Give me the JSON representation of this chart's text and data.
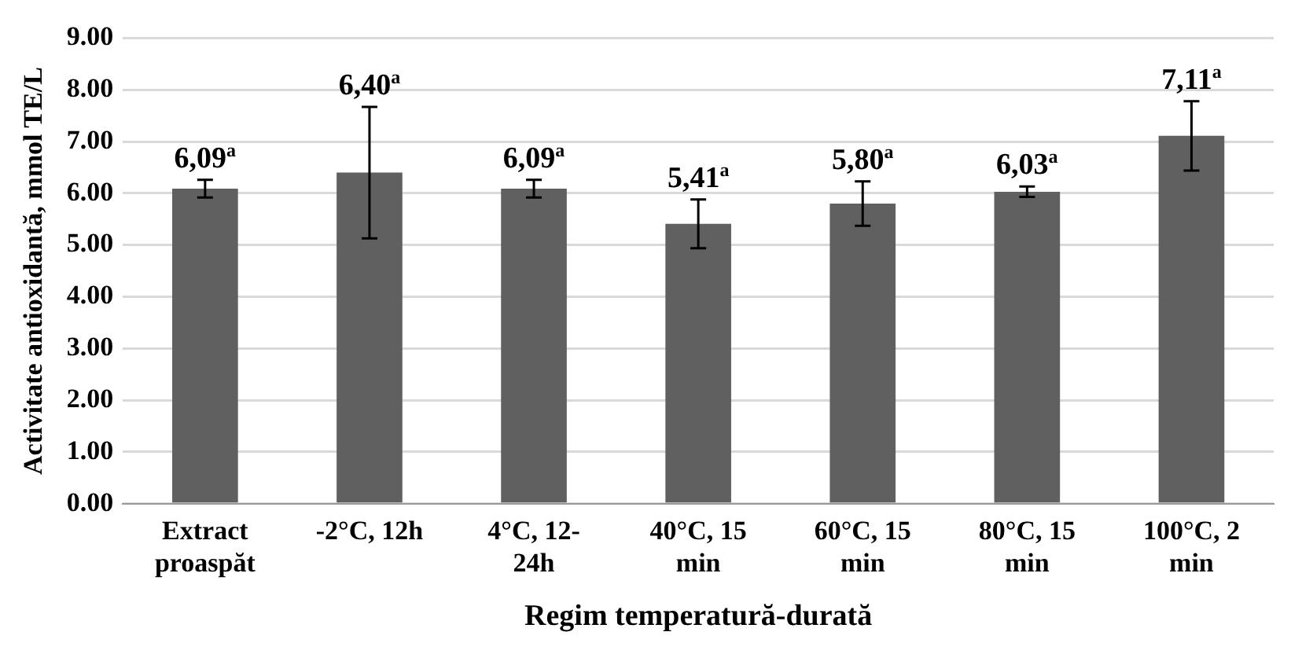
{
  "chart_data": {
    "type": "bar",
    "xlabel": "Regim temperatură-durată",
    "ylabel": "Activitate antioxidantă, mmol TE/L",
    "categories": [
      "Extract proaspăt",
      "-2°C, 12h",
      "4°C, 12-24h",
      "40°C, 15 min",
      "60°C, 15 min",
      "80°C, 15 min",
      "100°C, 2 min"
    ],
    "values": [
      6.09,
      6.4,
      6.09,
      5.41,
      5.8,
      6.03,
      7.11
    ],
    "errors": [
      0.17,
      1.27,
      0.17,
      0.47,
      0.43,
      0.1,
      0.67
    ],
    "value_labels": [
      "6,09$^{a}$",
      "6,40$^{a}$",
      "6,09$^{a}$",
      "5,41$^{a}$",
      "5,80$^{a}$",
      "6,03$^{a}$",
      "7,11$^{a}$"
    ],
    "color": "#606060",
    "ylim": [
      0,
      9
    ],
    "yticks": [
      {
        "value": 0,
        "label": "0.00"
      },
      {
        "value": 1,
        "label": "1.00"
      },
      {
        "value": 2,
        "label": "2.00"
      },
      {
        "value": 3,
        "label": "3.00"
      },
      {
        "value": 4,
        "label": "4.00"
      },
      {
        "value": 5,
        "label": "5.00"
      },
      {
        "value": 6,
        "label": "6.00"
      },
      {
        "value": 7,
        "label": "7.00"
      },
      {
        "value": 8,
        "label": "8.00"
      },
      {
        "value": 9,
        "label": "9.00"
      }
    ],
    "grid": "y",
    "legend": false
  }
}
